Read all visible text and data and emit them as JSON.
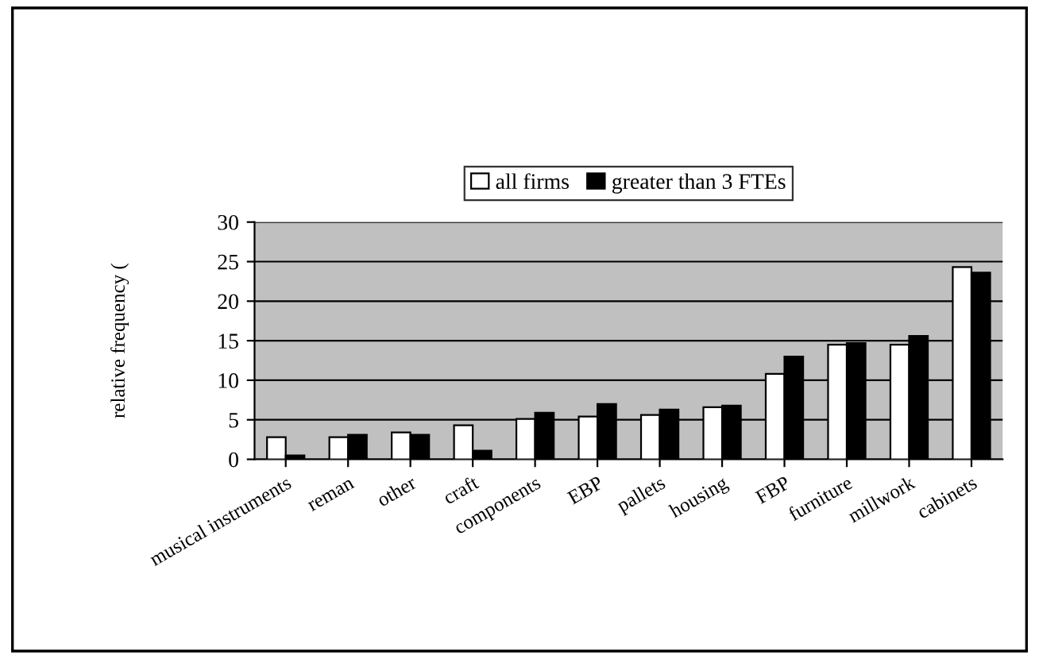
{
  "chart_data": {
    "type": "bar",
    "ylabel": "relative frequency (",
    "categories": [
      "musical instruments",
      "reman",
      "other",
      "craft",
      "components",
      "EBP",
      "pallets",
      "housing",
      "FBP",
      "furniture",
      "millwork",
      "cabinets"
    ],
    "series": [
      {
        "name": "all firms",
        "color": "#ffffff",
        "values": [
          2.8,
          2.8,
          3.4,
          4.3,
          5.1,
          5.4,
          5.6,
          6.6,
          10.8,
          14.5,
          14.5,
          24.3
        ]
      },
      {
        "name": "greater than 3 FTEs",
        "color": "#000000",
        "values": [
          0.5,
          3.1,
          3.1,
          1.1,
          5.9,
          7.0,
          6.3,
          6.8,
          13.0,
          14.7,
          15.6,
          23.6
        ]
      }
    ],
    "ylim": [
      0,
      30
    ],
    "yticks": [
      0,
      5,
      10,
      15,
      20,
      25,
      30
    ],
    "grid": "y",
    "legend": "top"
  }
}
